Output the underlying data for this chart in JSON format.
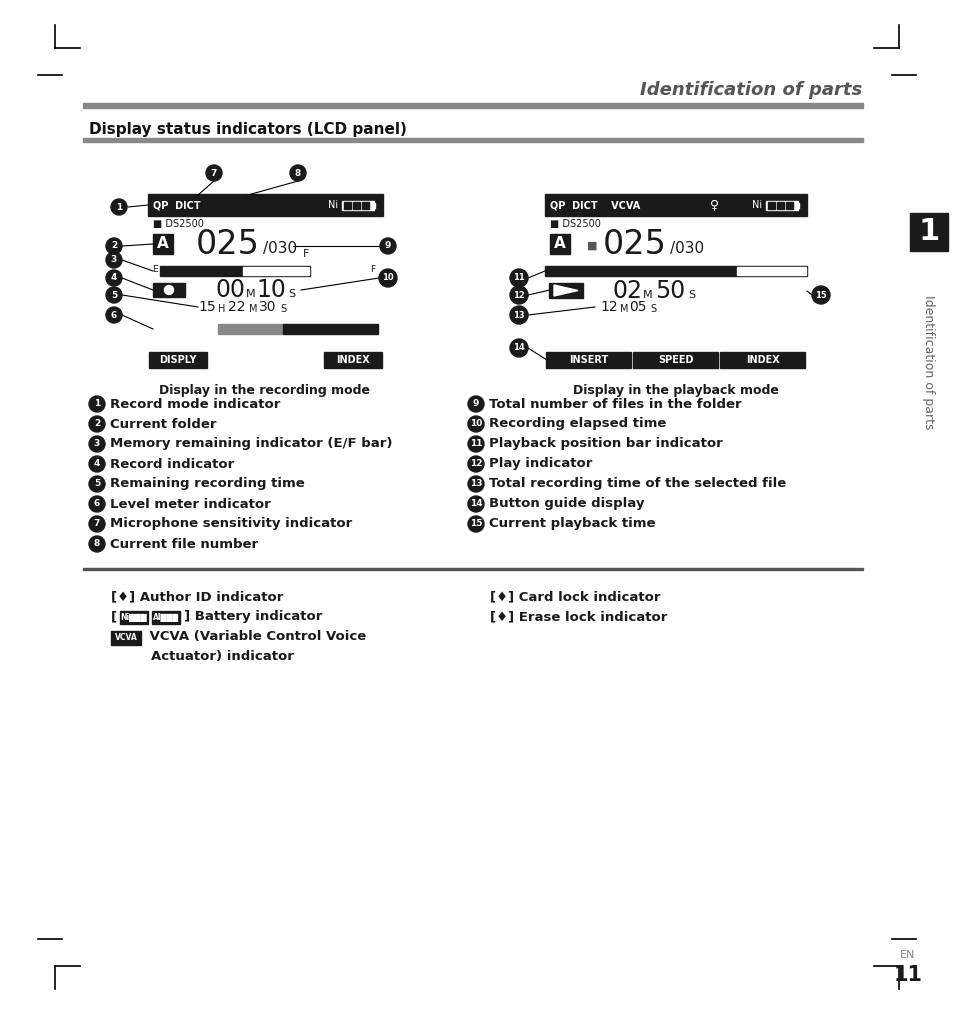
{
  "page_title": "Identification of parts",
  "section_title": "Display status indicators (LCD panel)",
  "recording_caption": "Display in the recording mode",
  "playback_caption": "Display in the playback mode",
  "labels_left": [
    [
      "1",
      "Record mode indicator"
    ],
    [
      "2",
      "Current folder"
    ],
    [
      "3",
      "Memory remaining indicator (E/F bar)"
    ],
    [
      "4",
      "Record indicator"
    ],
    [
      "5",
      "Remaining recording time"
    ],
    [
      "6",
      "Level meter indicator"
    ],
    [
      "7",
      "Microphone sensitivity indicator"
    ],
    [
      "8",
      "Current file number"
    ]
  ],
  "labels_right": [
    [
      "9",
      "Total number of files in the folder"
    ],
    [
      "10",
      "Recording elapsed time"
    ],
    [
      "11",
      "Playback position bar indicator"
    ],
    [
      "12",
      "Play indicator"
    ],
    [
      "13",
      "Total recording time of the selected file"
    ],
    [
      "14",
      "Button guide display"
    ],
    [
      "15",
      "Current playback time"
    ]
  ],
  "bottom_left_lines": [
    "[♦] Author ID indicator",
    "[♦♦♦ ♦♦♦] Battery indicator",
    "[VCVA] VCVA (Variable Control Voice",
    "        Actuator) indicator"
  ],
  "bottom_right_lines": [
    "[♦] Card lock indicator",
    "[♦] Erase lock indicator"
  ],
  "sidebar_num": "1",
  "sidebar_text": "Identification of parts",
  "page_num": "11",
  "bg_color": "#ffffff",
  "dark": "#1a1a1a",
  "gray": "#888888",
  "lgray": "#aaaaaa"
}
